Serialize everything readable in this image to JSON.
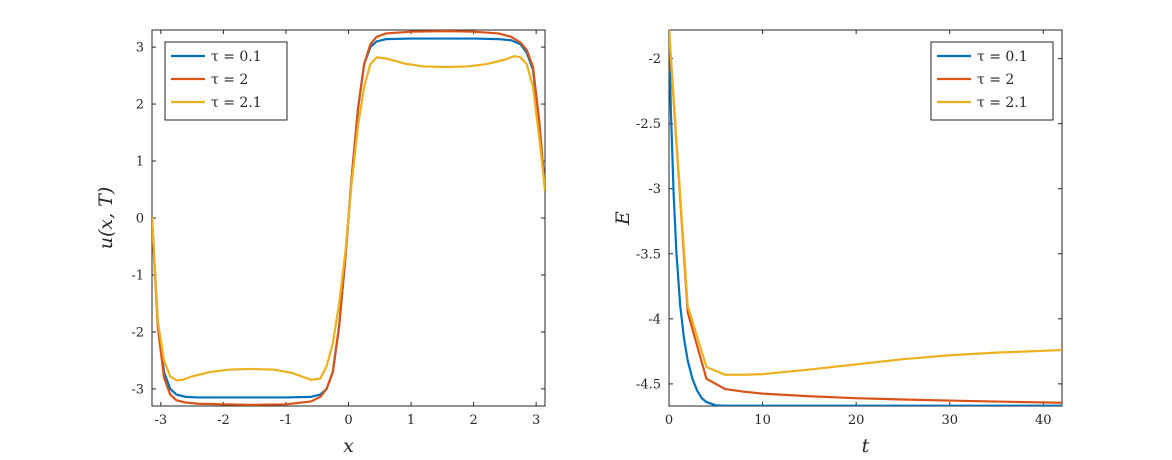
{
  "chart_data": [
    {
      "type": "line",
      "xlabel": "x",
      "ylabel": "u(x, T)",
      "xlim": [
        -3.1416,
        3.1416
      ],
      "ylim": [
        -3.3,
        3.3
      ],
      "xticks": [
        -3,
        -2,
        -1,
        0,
        1,
        2,
        3
      ],
      "yticks": [
        -3,
        -2,
        -1,
        0,
        1,
        2,
        3
      ],
      "grid": false,
      "legend_position": "top-left",
      "series": [
        {
          "name": "τ = 0.1",
          "color": "#0072BD",
          "x": [
            -3.1416,
            -3.05,
            -2.95,
            -2.85,
            -2.75,
            -2.6,
            -2.4,
            -2.0,
            -1.5,
            -1.0,
            -0.6,
            -0.45,
            -0.35,
            -0.25,
            -0.15,
            -0.05,
            0.0,
            0.05,
            0.15,
            0.25,
            0.35,
            0.45,
            0.6,
            1.0,
            1.5,
            2.0,
            2.4,
            2.6,
            2.75,
            2.85,
            2.95,
            3.05,
            3.1416
          ],
          "y": [
            0,
            -1.8,
            -2.7,
            -3.0,
            -3.1,
            -3.14,
            -3.15,
            -3.15,
            -3.15,
            -3.15,
            -3.14,
            -3.1,
            -3.0,
            -2.7,
            -1.9,
            -0.7,
            0,
            0.7,
            1.9,
            2.7,
            3.0,
            3.1,
            3.14,
            3.15,
            3.15,
            3.15,
            3.14,
            3.12,
            3.05,
            2.9,
            2.6,
            1.6,
            0.5
          ]
        },
        {
          "name": "τ = 2",
          "color": "#D95319",
          "x": [
            -3.1416,
            -3.05,
            -2.95,
            -2.85,
            -2.75,
            -2.6,
            -2.4,
            -2.0,
            -1.57,
            -1.0,
            -0.6,
            -0.45,
            -0.35,
            -0.25,
            -0.15,
            -0.05,
            0.0,
            0.05,
            0.15,
            0.25,
            0.35,
            0.45,
            0.6,
            1.0,
            1.57,
            2.0,
            2.4,
            2.6,
            2.75,
            2.85,
            2.95,
            3.05,
            3.1416
          ],
          "y": [
            0,
            -1.9,
            -2.8,
            -3.1,
            -3.2,
            -3.24,
            -3.26,
            -3.27,
            -3.28,
            -3.27,
            -3.22,
            -3.14,
            -3.0,
            -2.7,
            -1.9,
            -0.7,
            0,
            0.7,
            1.9,
            2.7,
            3.05,
            3.18,
            3.24,
            3.27,
            3.28,
            3.27,
            3.24,
            3.18,
            3.08,
            2.95,
            2.65,
            1.7,
            0.5
          ]
        },
        {
          "name": "τ = 2.1",
          "color": "#EDB120",
          "x": [
            -3.1416,
            -3.05,
            -2.95,
            -2.85,
            -2.75,
            -2.65,
            -2.5,
            -2.2,
            -1.9,
            -1.57,
            -1.2,
            -0.9,
            -0.6,
            -0.45,
            -0.35,
            -0.25,
            -0.15,
            -0.05,
            0.0,
            0.05,
            0.15,
            0.25,
            0.35,
            0.45,
            0.6,
            0.9,
            1.2,
            1.57,
            1.9,
            2.2,
            2.5,
            2.65,
            2.75,
            2.85,
            2.95,
            3.05,
            3.1416
          ],
          "y": [
            0,
            -1.8,
            -2.5,
            -2.78,
            -2.85,
            -2.84,
            -2.78,
            -2.7,
            -2.66,
            -2.65,
            -2.66,
            -2.72,
            -2.84,
            -2.82,
            -2.6,
            -2.2,
            -1.5,
            -0.6,
            0,
            0.6,
            1.6,
            2.3,
            2.7,
            2.82,
            2.8,
            2.71,
            2.66,
            2.65,
            2.66,
            2.7,
            2.78,
            2.84,
            2.82,
            2.7,
            2.3,
            1.4,
            0.5
          ]
        }
      ]
    },
    {
      "type": "line",
      "xlabel": "t",
      "ylabel": "E",
      "xlim": [
        0,
        42
      ],
      "ylim": [
        -4.67,
        -1.78
      ],
      "xticks": [
        0,
        10,
        20,
        30,
        40
      ],
      "yticks": [
        -2,
        -2.5,
        -3,
        -3.5,
        -4,
        -4.5
      ],
      "grid": false,
      "legend_position": "top-right",
      "series": [
        {
          "name": "τ = 0.1",
          "color": "#0072BD",
          "x": [
            0,
            0.2,
            0.5,
            0.8,
            1.2,
            1.6,
            2.0,
            2.5,
            3.0,
            3.5,
            4.0,
            5.0,
            6.0,
            8.0,
            10,
            20,
            30,
            42
          ],
          "y": [
            -1.78,
            -2.4,
            -3.05,
            -3.5,
            -3.9,
            -4.15,
            -4.32,
            -4.46,
            -4.55,
            -4.61,
            -4.64,
            -4.665,
            -4.668,
            -4.668,
            -4.668,
            -4.668,
            -4.668,
            -4.668
          ]
        },
        {
          "name": "τ = 2",
          "color": "#D95319",
          "x": [
            0,
            2,
            4,
            6,
            8,
            10,
            15,
            20,
            25,
            30,
            35,
            42
          ],
          "y": [
            -1.78,
            -3.95,
            -4.46,
            -4.54,
            -4.56,
            -4.575,
            -4.595,
            -4.61,
            -4.62,
            -4.628,
            -4.636,
            -4.645
          ]
        },
        {
          "name": "τ = 2.1",
          "color": "#EDB120",
          "x": [
            0,
            2,
            4,
            6,
            8,
            10,
            15,
            20,
            25,
            30,
            35,
            42
          ],
          "y": [
            -1.78,
            -3.9,
            -4.37,
            -4.43,
            -4.43,
            -4.425,
            -4.39,
            -4.35,
            -4.31,
            -4.28,
            -4.26,
            -4.24
          ]
        }
      ]
    }
  ]
}
